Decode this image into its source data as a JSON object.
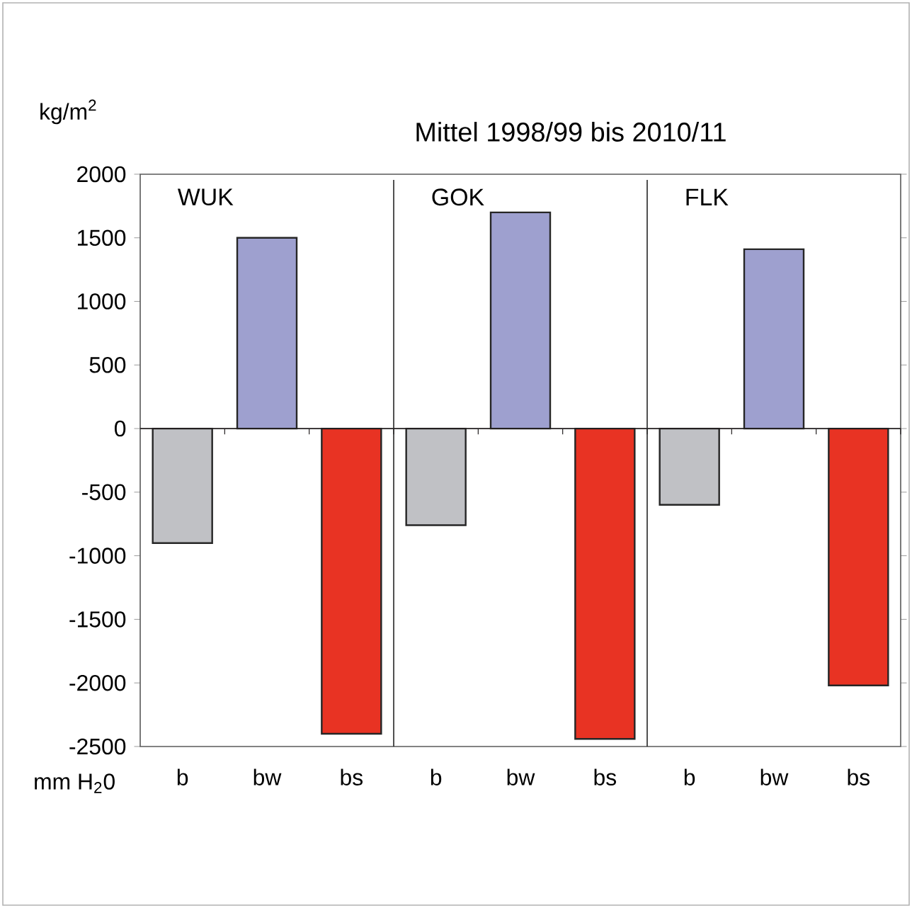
{
  "chart_data": {
    "type": "bar",
    "title": "Mittel 1998/99 bis 2010/11",
    "ylabel": "kg/m$^{2}$",
    "xlabel": "mm H$_{2}$0",
    "categories": [
      "b",
      "bw",
      "bs",
      "b",
      "bw",
      "bs",
      "b",
      "bw",
      "bs"
    ],
    "values": [
      -900,
      1500,
      -2400,
      -760,
      1700,
      -2440,
      -600,
      1410,
      -2020
    ],
    "colors": [
      "#c0c1c5",
      "#9ea0cf",
      "#e83323",
      "#c0c1c5",
      "#9ea0cf",
      "#e83323",
      "#c0c1c5",
      "#9ea0cf",
      "#e83323"
    ],
    "ylim": [
      -2500,
      2000
    ],
    "yticks": [
      -2500,
      -2000,
      -1500,
      -1000,
      -500,
      0,
      500,
      1000,
      1500,
      2000
    ],
    "annotations": [
      "WUK",
      "GOK",
      "FLK"
    ],
    "ref_lines": [
      {
        "axis": "y",
        "value": 0,
        "color": "#231f20"
      }
    ],
    "grid": false
  }
}
